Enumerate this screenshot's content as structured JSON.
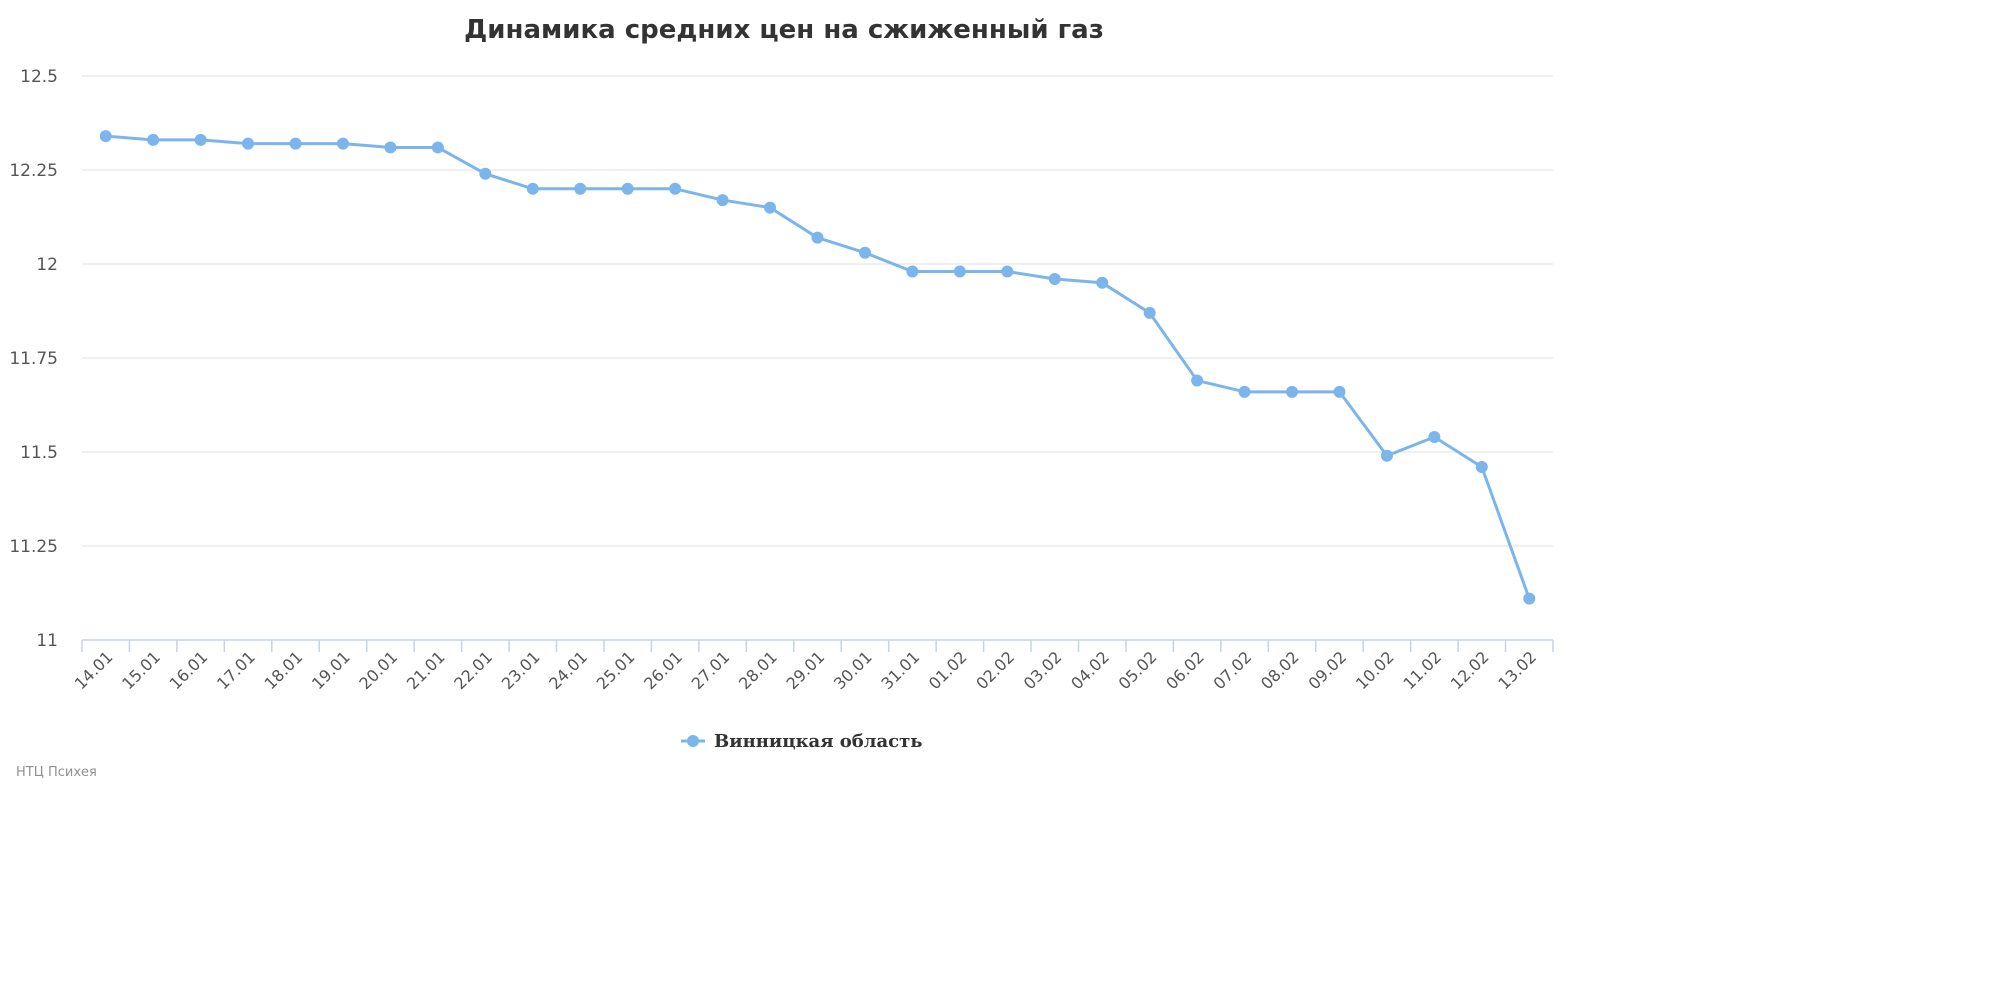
{
  "chart_data": {
    "type": "line",
    "title": "Динамика средних цен на сжиженный газ",
    "xlabel": "",
    "ylabel": "",
    "x": [
      "14.01",
      "15.01",
      "16.01",
      "17.01",
      "18.01",
      "19.01",
      "20.01",
      "21.01",
      "22.01",
      "23.01",
      "24.01",
      "25.01",
      "26.01",
      "27.01",
      "28.01",
      "29.01",
      "30.01",
      "31.01",
      "01.02",
      "02.02",
      "03.02",
      "04.02",
      "05.02",
      "06.02",
      "07.02",
      "08.02",
      "09.02",
      "10.02",
      "11.02",
      "12.02",
      "13.02"
    ],
    "series": [
      {
        "name": "Винницкая область",
        "color": "#7cb5ec",
        "values": [
          12.34,
          12.33,
          12.33,
          12.32,
          12.32,
          12.32,
          12.31,
          12.31,
          12.24,
          12.2,
          12.2,
          12.2,
          12.2,
          12.17,
          12.15,
          12.07,
          12.03,
          11.98,
          11.98,
          11.98,
          11.96,
          11.95,
          11.87,
          11.69,
          11.66,
          11.66,
          11.66,
          11.49,
          11.54,
          11.46,
          11.11
        ]
      }
    ],
    "ylim": [
      11,
      12.5
    ],
    "yticks": [
      "11",
      "11.25",
      "11.5",
      "11.75",
      "12",
      "12.25",
      "12.5"
    ],
    "grid": true,
    "legend_position": "bottom-center"
  },
  "credit": "НТЦ Психея"
}
